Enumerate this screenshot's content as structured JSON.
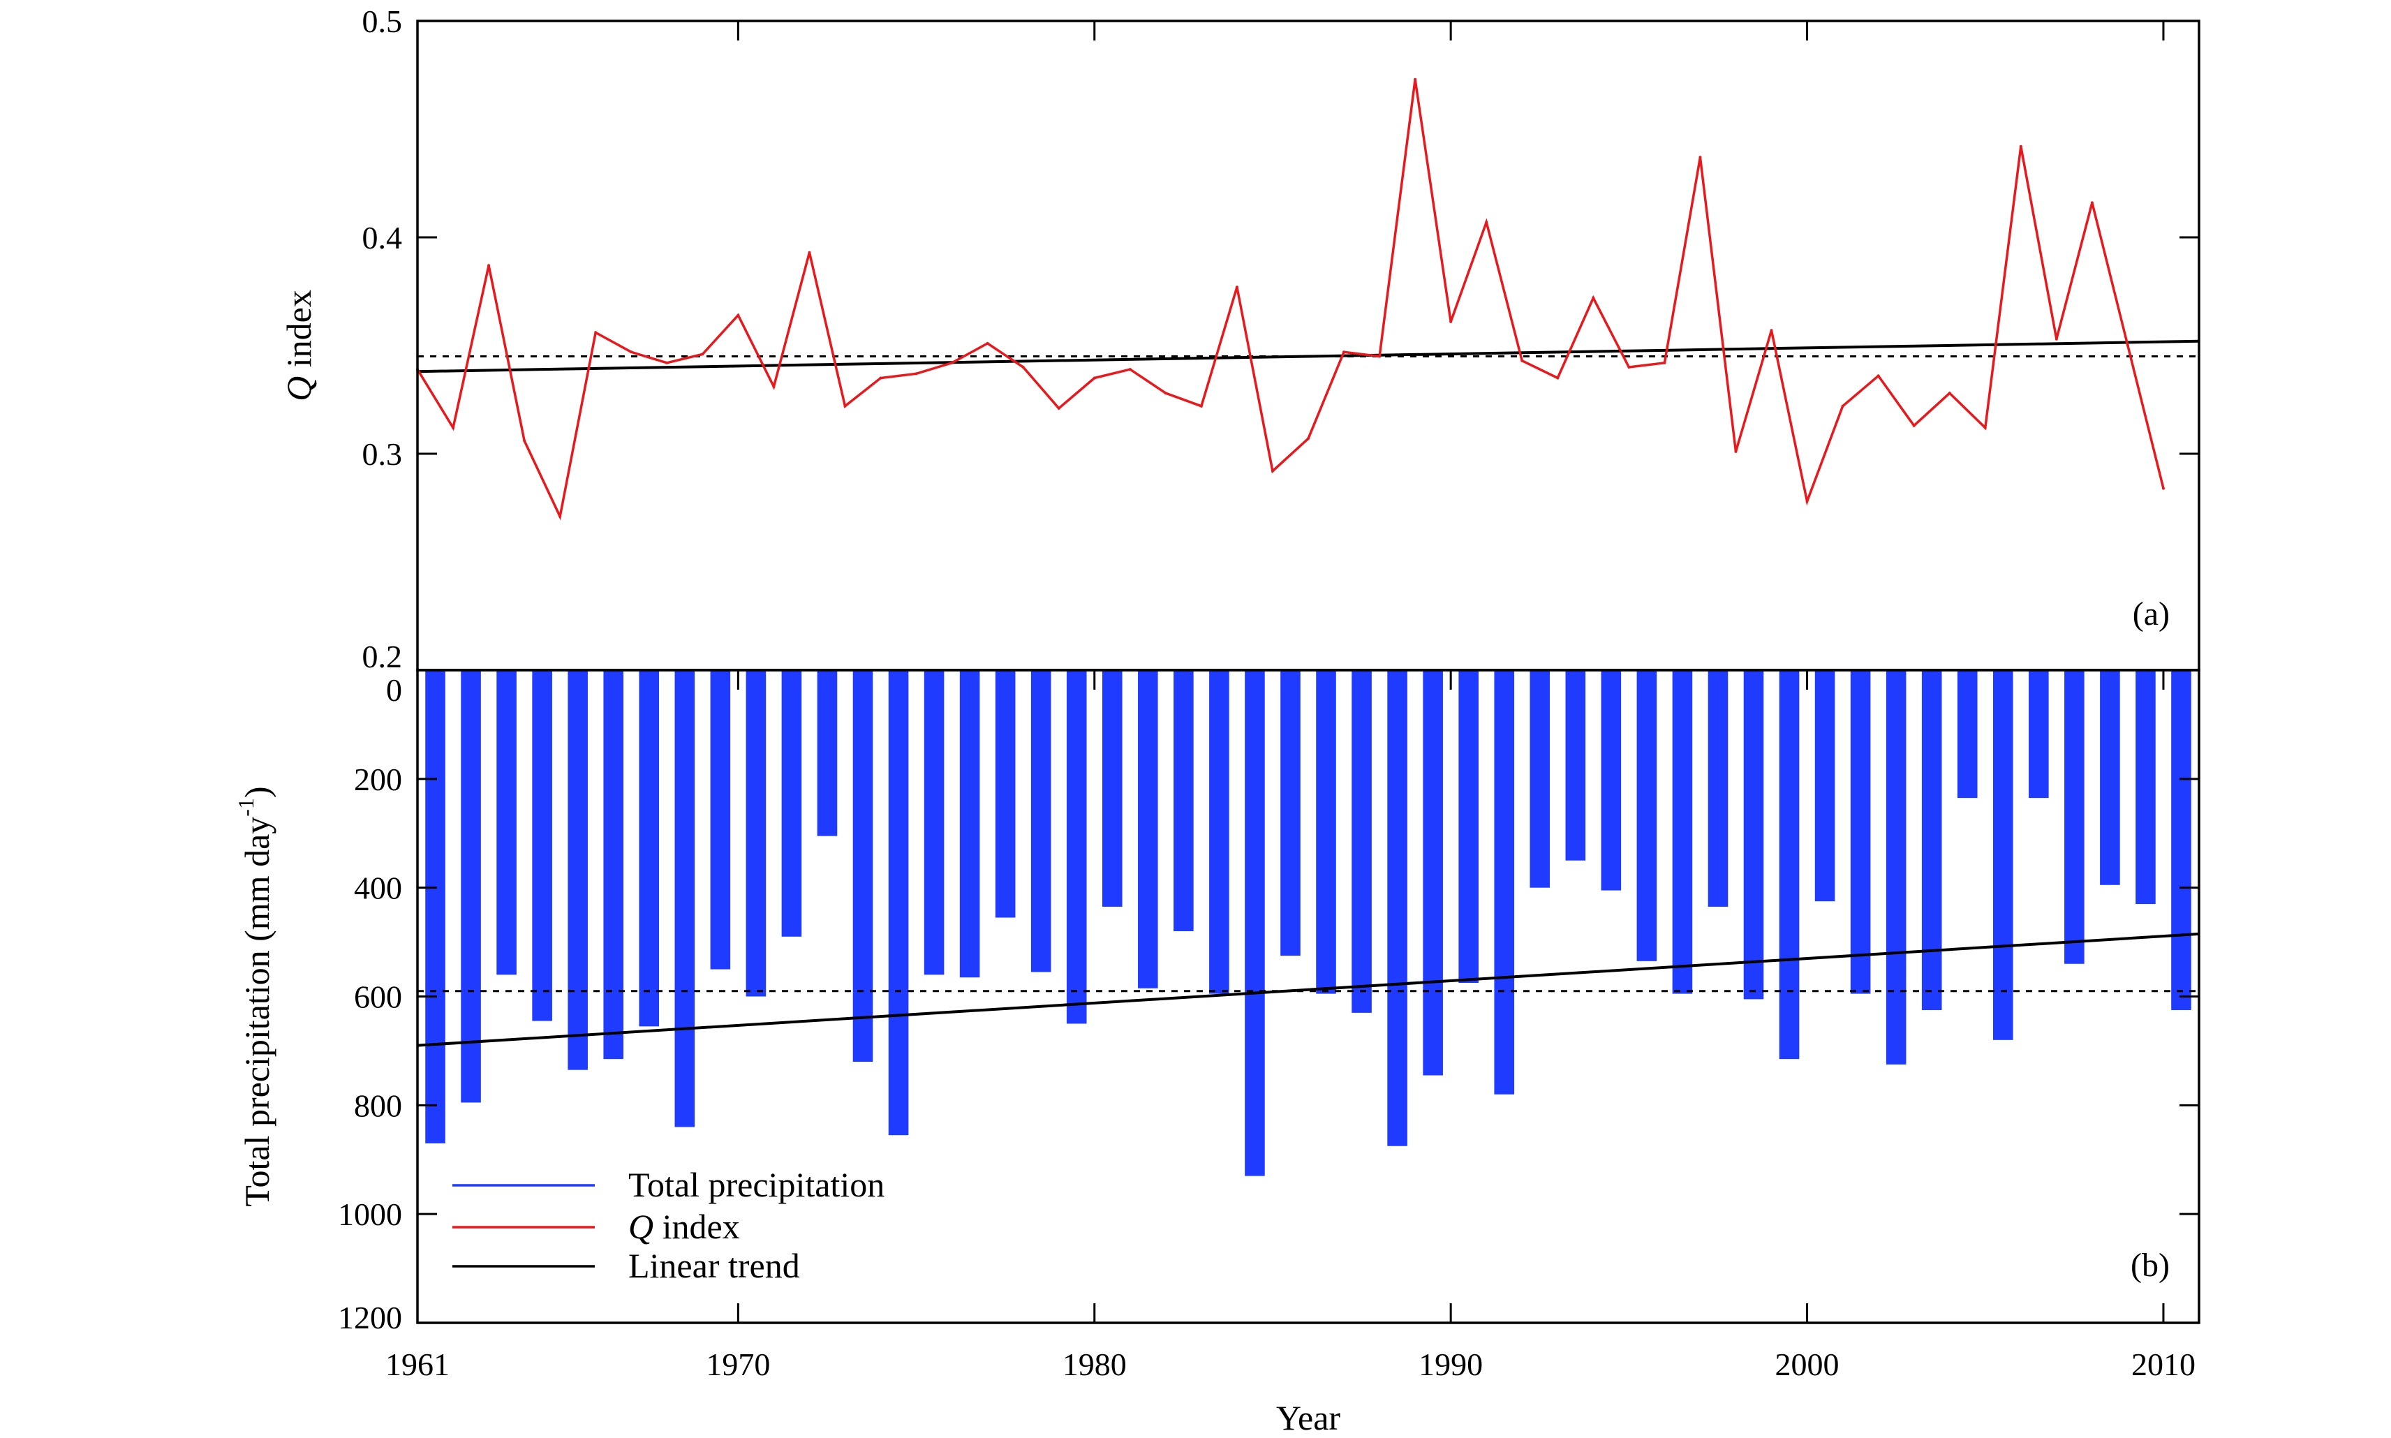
{
  "colors": {
    "precip_bar": "#1f3bff",
    "q_line": "#e8191c",
    "trend": "#000000",
    "mean": "#000000"
  },
  "chart_data": [
    {
      "panel": "(a)",
      "type": "line",
      "ylabel_symbol": "Q",
      "ylabel_rest": " index",
      "ylim": [
        0.2,
        0.5
      ],
      "yticks": [
        0.2,
        0.3,
        0.4,
        0.5
      ],
      "ytick_labels": [
        "0.2",
        "0.3",
        "0.4",
        "0.5"
      ],
      "x": [
        1961,
        1962,
        1963,
        1964,
        1965,
        1966,
        1967,
        1968,
        1969,
        1970,
        1971,
        1972,
        1973,
        1974,
        1975,
        1976,
        1977,
        1978,
        1979,
        1980,
        1981,
        1982,
        1983,
        1984,
        1985,
        1986,
        1987,
        1988,
        1989,
        1990,
        1991,
        1992,
        1993,
        1994,
        1995,
        1996,
        1997,
        1998,
        1999,
        2000,
        2001,
        2002,
        2003,
        2004,
        2005,
        2006,
        2007,
        2008,
        2009,
        2010
      ],
      "series": [
        {
          "name": "Q index",
          "values": [
            0.339,
            0.312,
            0.387,
            0.306,
            0.271,
            0.356,
            0.347,
            0.342,
            0.346,
            0.364,
            0.331,
            0.393,
            0.322,
            0.335,
            0.337,
            0.342,
            0.351,
            0.34,
            0.321,
            0.335,
            0.339,
            0.328,
            0.322,
            0.377,
            0.292,
            0.307,
            0.347,
            0.345,
            0.473,
            0.361,
            0.407,
            0.343,
            0.335,
            0.372,
            0.34,
            0.342,
            0.437,
            0.301,
            0.357,
            0.278,
            0.322,
            0.336,
            0.313,
            0.328,
            0.312,
            0.442,
            0.353,
            0.416,
            0.35,
            0.284
          ]
        }
      ],
      "mean": 0.345,
      "trend": {
        "start": [
          1961,
          0.338
        ],
        "end": [
          2011,
          0.352
        ]
      }
    },
    {
      "panel": "(b)",
      "type": "bar",
      "ylabel": "Total precipitation (mm day",
      "ylabel_sup": "-1",
      "ylabel_close": ")",
      "ylim": [
        0,
        1200
      ],
      "inverted": true,
      "yticks": [
        0,
        200,
        400,
        600,
        800,
        1000,
        1200
      ],
      "ytick_labels": [
        "0",
        "200",
        "400",
        "600",
        "800",
        "1000",
        "1200"
      ],
      "x": [
        1961,
        1962,
        1963,
        1964,
        1965,
        1966,
        1967,
        1968,
        1969,
        1970,
        1971,
        1972,
        1973,
        1974,
        1975,
        1976,
        1977,
        1978,
        1979,
        1980,
        1981,
        1982,
        1983,
        1984,
        1985,
        1986,
        1987,
        1988,
        1989,
        1990,
        1991,
        1992,
        1993,
        1994,
        1995,
        1996,
        1997,
        1998,
        1999,
        2000,
        2001,
        2002,
        2003,
        2004,
        2005,
        2006,
        2007,
        2008,
        2009,
        2010
      ],
      "series": [
        {
          "name": "Total precipitation",
          "values": [
            870,
            795,
            560,
            645,
            735,
            715,
            655,
            840,
            550,
            600,
            490,
            305,
            720,
            855,
            560,
            565,
            455,
            555,
            650,
            435,
            585,
            480,
            595,
            930,
            525,
            595,
            630,
            875,
            745,
            575,
            780,
            400,
            350,
            405,
            535,
            595,
            435,
            605,
            715,
            425,
            595,
            725,
            625,
            235,
            680,
            235,
            540,
            395,
            430,
            625
          ]
        }
      ],
      "mean": 590,
      "trend": {
        "start": [
          1961,
          690
        ],
        "end": [
          2011,
          485
        ]
      }
    }
  ],
  "xaxis": {
    "xlim": [
      1961,
      2011
    ],
    "ticks": [
      1961,
      1970,
      1980,
      1990,
      2000,
      2010
    ],
    "tick_labels": [
      "1961",
      "1970",
      "1980",
      "1990",
      "2000",
      "2010"
    ],
    "xlabel": "Year"
  },
  "legend": {
    "placement": "bottom-left",
    "items": [
      {
        "label": "Total precipitation",
        "key": "precip_bar"
      },
      {
        "label_symbol": "Q",
        "label_rest": " index",
        "key": "q_line"
      },
      {
        "label": "Linear trend",
        "key": "trend"
      }
    ]
  }
}
